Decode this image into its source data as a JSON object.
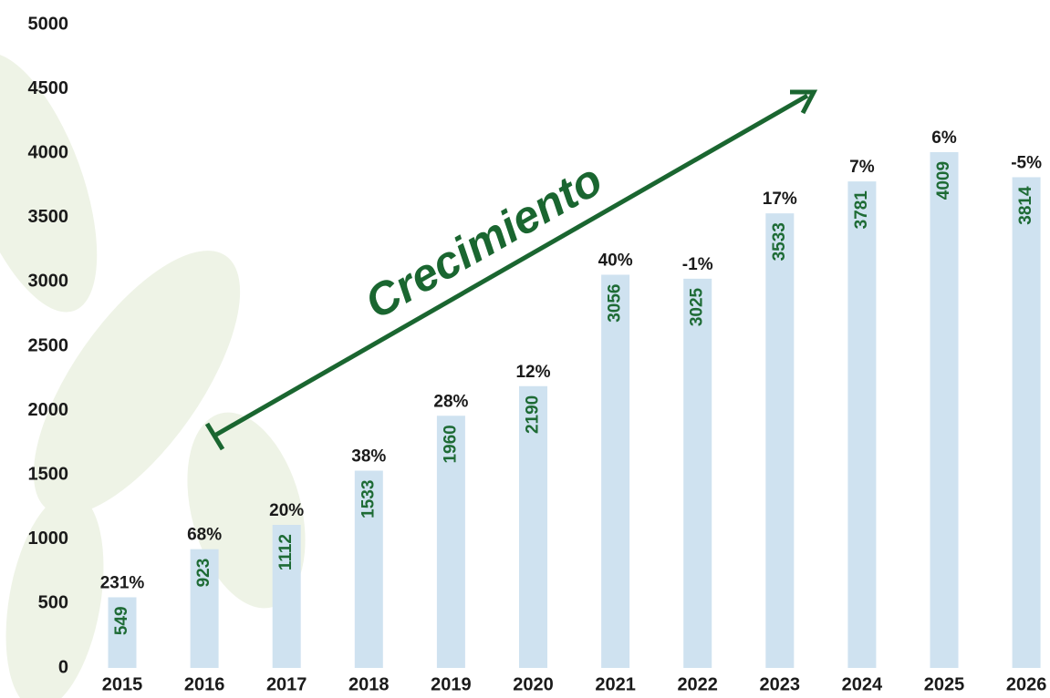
{
  "chart_data": {
    "type": "bar",
    "categories": [
      "2015",
      "2016",
      "2017",
      "2018",
      "2019",
      "2020",
      "2021",
      "2022",
      "2023",
      "2024",
      "2025",
      "2026"
    ],
    "values": [
      549,
      923,
      1112,
      1533,
      1960,
      2190,
      3056,
      3025,
      3533,
      3781,
      4009,
      3814
    ],
    "growth_labels": [
      "231%",
      "68%",
      "20%",
      "38%",
      "28%",
      "12%",
      "40%",
      "-1%",
      "17%",
      "7%",
      "6%",
      "-5%"
    ],
    "annotation": "Crecimiento",
    "color": "#cfe2f0",
    "value_label_color": "#1e6b35",
    "ylim": [
      0,
      5000
    ],
    "yticks": [
      0,
      500,
      1000,
      1500,
      2000,
      2500,
      3000,
      3500,
      4000,
      4500,
      5000
    ],
    "grid": false
  }
}
